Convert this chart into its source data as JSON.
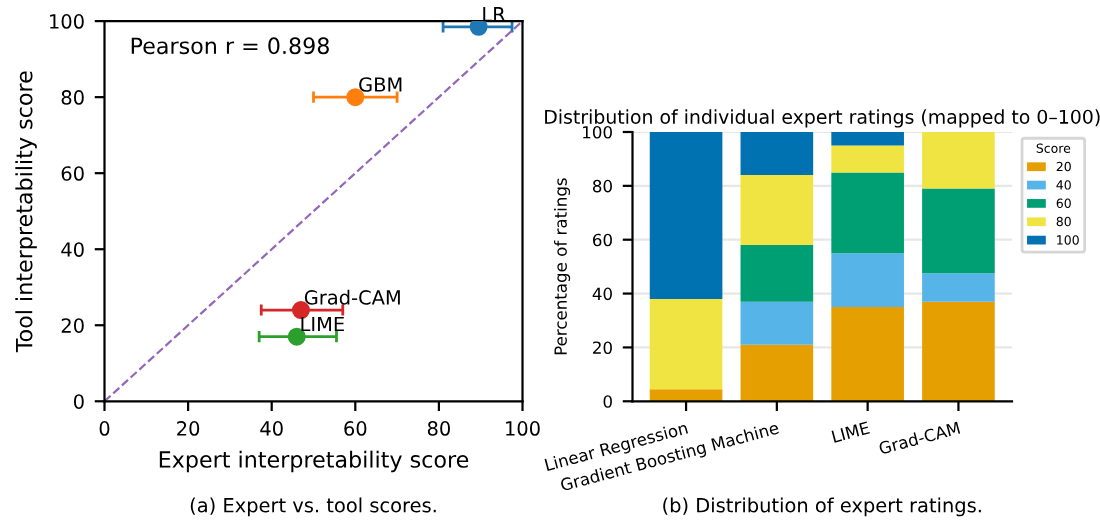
{
  "chart_data": [
    {
      "type": "scatter",
      "xlabel": "Expert interpretability score",
      "ylabel": "Tool interpretability score",
      "xlim": [
        0,
        100
      ],
      "ylim": [
        0,
        100
      ],
      "xticks": [
        0,
        20,
        40,
        60,
        80,
        100
      ],
      "yticks": [
        0,
        20,
        40,
        60,
        80,
        100
      ],
      "grid": false,
      "legend": false,
      "marker": "circle",
      "annotations": [
        "Pearson r = 0.898",
        "(a) Expert vs. tool scores."
      ],
      "series": [
        {
          "name": "LR",
          "color": "#1f77b4",
          "x": [
            89.5
          ],
          "values": [
            98.5
          ],
          "xerrors": [
            [
              81,
              97.5
            ]
          ]
        },
        {
          "name": "GBM",
          "color": "#ff7f0e",
          "x": [
            60
          ],
          "values": [
            80
          ],
          "xerrors": [
            [
              50,
              70
            ]
          ]
        },
        {
          "name": "Grad-CAM",
          "color": "#d62728",
          "x": [
            47
          ],
          "values": [
            24
          ],
          "xerrors": [
            [
              37.5,
              57
            ]
          ]
        },
        {
          "name": "LIME",
          "color": "#2ca02c",
          "x": [
            46
          ],
          "values": [
            17
          ],
          "xerrors": [
            [
              37,
              55.5
            ]
          ]
        },
        {
          "type": "line",
          "color": "#9467bd",
          "line_style": "dashed",
          "marker": "none",
          "x": [
            0,
            100
          ],
          "values": [
            0,
            100
          ]
        }
      ]
    },
    {
      "type": "bar",
      "stacked": true,
      "title": "Distribution of individual expert ratings (mapped to 0–100)",
      "ylabel": "Percentage of ratings",
      "legend_title": "Score",
      "legend": "right",
      "grid": "y",
      "ylim": [
        0,
        100
      ],
      "yticks": [
        0,
        20,
        40,
        60,
        80,
        100
      ],
      "categories": [
        "Linear Regression",
        "Gradient Boosting Machine",
        "LIME",
        "Grad-CAM"
      ],
      "annotations": [
        "(b) Distribution of expert ratings."
      ],
      "series": [
        {
          "name": "20",
          "color": "#e69f00",
          "values": [
            4.5,
            21,
            35,
            37
          ]
        },
        {
          "name": "40",
          "color": "#56b4e9",
          "values": [
            0,
            16,
            20,
            10.5
          ]
        },
        {
          "name": "60",
          "color": "#009e73",
          "values": [
            0,
            21,
            30,
            31.5
          ]
        },
        {
          "name": "80",
          "color": "#f0e442",
          "values": [
            33.5,
            26,
            10,
            21
          ]
        },
        {
          "name": "100",
          "color": "#0072b2",
          "values": [
            62,
            16,
            5,
            0
          ]
        }
      ]
    }
  ]
}
